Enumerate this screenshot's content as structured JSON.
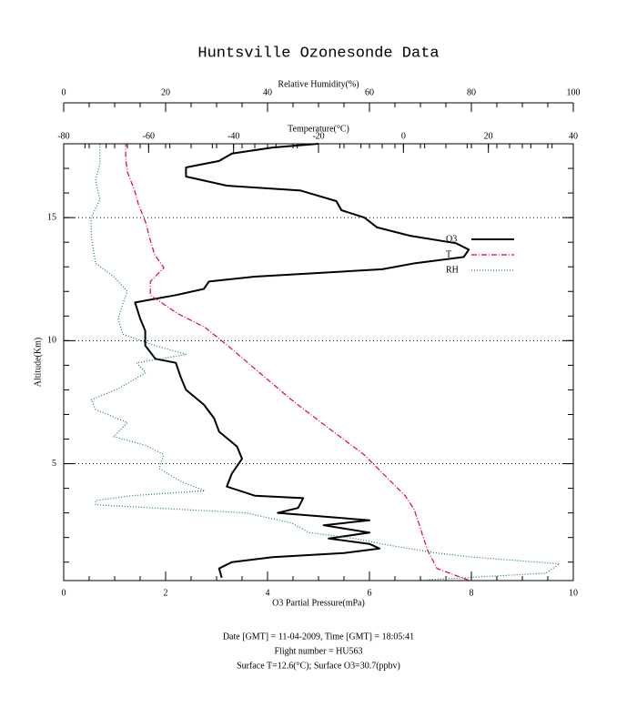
{
  "chart_data": {
    "type": "line",
    "title": "Huntsville Ozonesonde Data",
    "x_label": "O3 Partial Pressure(mPa)",
    "x2_label": "Temperature(°C)",
    "x3_label": "Relative Humidity(%)",
    "y_label": "Altitude(Km)",
    "footer": [
      "Date [GMT] = 11-04-2009,  Time [GMT] = 18:05:41",
      "Flight number = HU563",
      "Surface T=12.6(°C); Surface O3=30.7(ppbv)"
    ],
    "xlim": [
      0,
      10
    ],
    "xticks": [
      0,
      2,
      4,
      6,
      8,
      10
    ],
    "xminor_step": 0.5,
    "x2lim": [
      -80,
      40
    ],
    "x2ticks": [
      -80,
      -60,
      -40,
      -20,
      0,
      20,
      40
    ],
    "x2minor_step": 5,
    "x3lim": [
      0,
      100
    ],
    "x3ticks": [
      0,
      20,
      40,
      60,
      80,
      100
    ],
    "x3minor_step": 5,
    "ylim": [
      0.25,
      18
    ],
    "yticks": [
      5,
      10,
      15
    ],
    "yminor_step": 1,
    "grid": true,
    "series": [
      {
        "name": "O3",
        "color": "#000000",
        "axis": "x",
        "style": "solid",
        "values": [
          3.1,
          3.05,
          3.3,
          4.1,
          5.5,
          6.2,
          6.0,
          5.2,
          6.0,
          5.1,
          6.0,
          4.2,
          4.6,
          4.7,
          3.75,
          3.2,
          3.3,
          3.5,
          3.4,
          3.05,
          2.95,
          2.75,
          2.4,
          2.3,
          2.2,
          1.8,
          1.6,
          1.6,
          1.5,
          1.4,
          2.2,
          2.75,
          2.85,
          3.75,
          6.25,
          6.9,
          7.85,
          7.95,
          7.7,
          6.8,
          6.15,
          5.9,
          5.45,
          5.35,
          4.65,
          3.2,
          2.4,
          2.4,
          3.05,
          3.3,
          4.1,
          5.0
        ],
        "y": [
          0.37,
          0.74,
          1.0,
          1.2,
          1.37,
          1.55,
          1.74,
          1.96,
          2.2,
          2.5,
          2.7,
          3.0,
          3.2,
          3.6,
          3.7,
          4.07,
          4.6,
          5.2,
          5.7,
          6.3,
          6.85,
          7.4,
          8.0,
          8.5,
          9.1,
          9.26,
          9.8,
          10.4,
          10.9,
          11.55,
          11.85,
          12.1,
          12.4,
          12.6,
          12.9,
          13.15,
          13.4,
          13.7,
          13.96,
          14.26,
          14.6,
          15.0,
          15.3,
          15.67,
          16.1,
          16.3,
          16.67,
          17.04,
          17.3,
          17.6,
          17.85,
          18.0
        ]
      },
      {
        "name": "T",
        "color": "#e8003c",
        "axis": "x2",
        "style": "dashdot",
        "values": [
          15.4,
          7.9,
          5.7,
          4.6,
          3.6,
          2.5,
          0.4,
          -5.0,
          -9.3,
          -17.9,
          -26.4,
          -33.9,
          -41.4,
          -46.8,
          -53.2,
          -59.6,
          -59.6,
          -56.4,
          -58.6,
          -59.6,
          -60.7,
          -62.4,
          -63.3,
          -65.0,
          -65.4,
          -65.4
        ],
        "y": [
          0.26,
          0.74,
          1.48,
          2.04,
          2.6,
          3.15,
          3.7,
          4.63,
          5.37,
          6.48,
          7.6,
          8.7,
          9.8,
          10.55,
          11.1,
          11.85,
          12.4,
          12.96,
          13.5,
          14.07,
          14.8,
          15.55,
          16.1,
          16.85,
          17.4,
          18.0
        ]
      },
      {
        "name": "RH",
        "color": "#1a7080",
        "axis": "x3",
        "style": "dotted",
        "values": [
          69.6,
          94.6,
          97.3,
          80.4,
          73.2,
          64.3,
          57.1,
          48.2,
          44.6,
          35.7,
          6.25,
          6.25,
          13.4,
          27.7,
          23.2,
          18.75,
          19.6,
          16.1,
          9.8,
          12.5,
          6.25,
          5.4,
          10.7,
          16.1,
          14.3,
          24.1,
          17.9,
          11.6,
          10.7,
          11.6,
          12.5,
          9.8,
          6.25,
          5.4,
          5.4,
          7.1,
          6.25,
          7.1,
          7.1
        ],
        "y": [
          0.26,
          0.55,
          0.93,
          1.2,
          1.37,
          1.67,
          1.96,
          2.2,
          2.6,
          3.0,
          3.33,
          3.5,
          3.7,
          3.9,
          4.26,
          4.8,
          5.37,
          5.74,
          6.1,
          6.67,
          7.2,
          7.6,
          8.04,
          8.7,
          9.1,
          9.44,
          9.8,
          10.26,
          10.9,
          11.5,
          12.0,
          12.6,
          13.15,
          14.26,
          15.0,
          15.74,
          16.5,
          17.2,
          18.0
        ]
      }
    ]
  }
}
